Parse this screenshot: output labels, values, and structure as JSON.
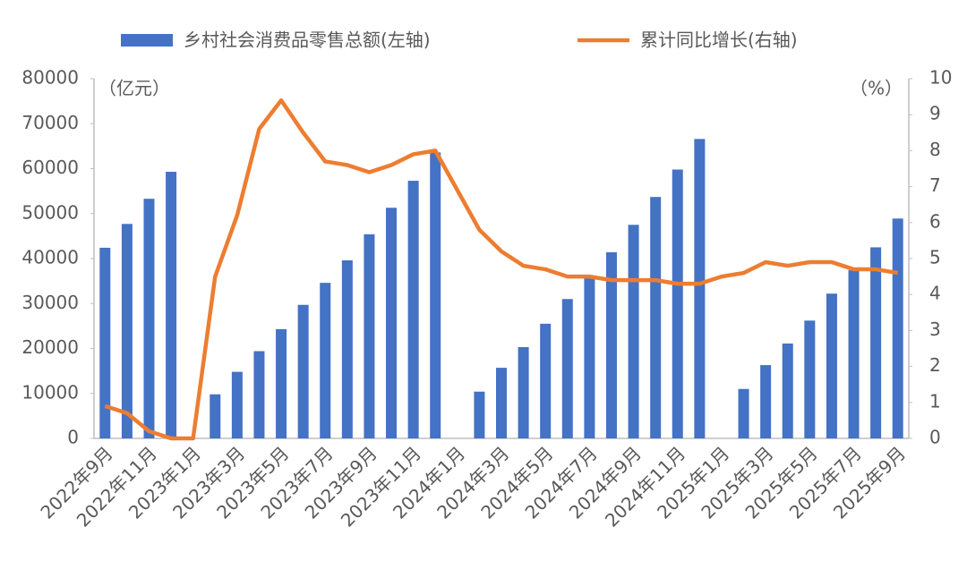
{
  "chart_data": {
    "type": "bar_line",
    "categories": [
      "2022年9月",
      null,
      "2022年11月",
      null,
      "2023年1月",
      null,
      "2023年3月",
      null,
      "2023年5月",
      null,
      "2023年7月",
      null,
      "2023年9月",
      null,
      "2023年11月",
      null,
      "2024年1月",
      null,
      "2024年3月",
      null,
      "2024年5月",
      null,
      "2024年7月",
      null,
      "2024年9月",
      null,
      "2024年11月",
      null,
      "2025年1月",
      null,
      "2025年3月",
      null,
      "2025年5月",
      null,
      "2025年7月",
      null,
      "2025年9月"
    ],
    "series": [
      {
        "name": "乡村社会消费品零售总额(左轴)",
        "type": "bar",
        "color": "#4472c4",
        "axis": "y",
        "values": [
          42400,
          47700,
          53300,
          59300,
          null,
          9800,
          14800,
          19400,
          24300,
          29700,
          34600,
          39600,
          45400,
          51300,
          57300,
          63600,
          null,
          10400,
          15700,
          20300,
          25500,
          31000,
          36000,
          41400,
          47500,
          53700,
          59800,
          66600,
          null,
          11000,
          16300,
          21100,
          26200,
          32200,
          37400,
          42500,
          48900
        ]
      },
      {
        "name": "累计同比增长(右轴)",
        "type": "line",
        "color": "#ed7d31",
        "axis": "y2",
        "values": [
          0.9,
          0.7,
          0.2,
          0,
          0,
          4.5,
          6.2,
          8.6,
          9.4,
          8.5,
          7.7,
          7.6,
          7.4,
          7.6,
          7.9,
          8.0,
          6.9,
          5.8,
          5.2,
          4.8,
          4.7,
          4.5,
          4.5,
          4.4,
          4.4,
          4.4,
          4.3,
          4.3,
          4.5,
          4.6,
          4.9,
          4.8,
          4.9,
          4.9,
          4.7,
          4.7,
          4.6
        ]
      }
    ],
    "y_unit": "（亿元）",
    "y2_unit": "（%）",
    "ylim": [
      0,
      80000
    ],
    "yticks": [
      0,
      10000,
      20000,
      30000,
      40000,
      50000,
      60000,
      70000,
      80000
    ],
    "y2lim": [
      0,
      10
    ],
    "y2ticks": [
      0,
      1,
      2,
      3,
      4,
      5,
      6,
      7,
      8,
      9,
      10
    ],
    "grid": false
  }
}
